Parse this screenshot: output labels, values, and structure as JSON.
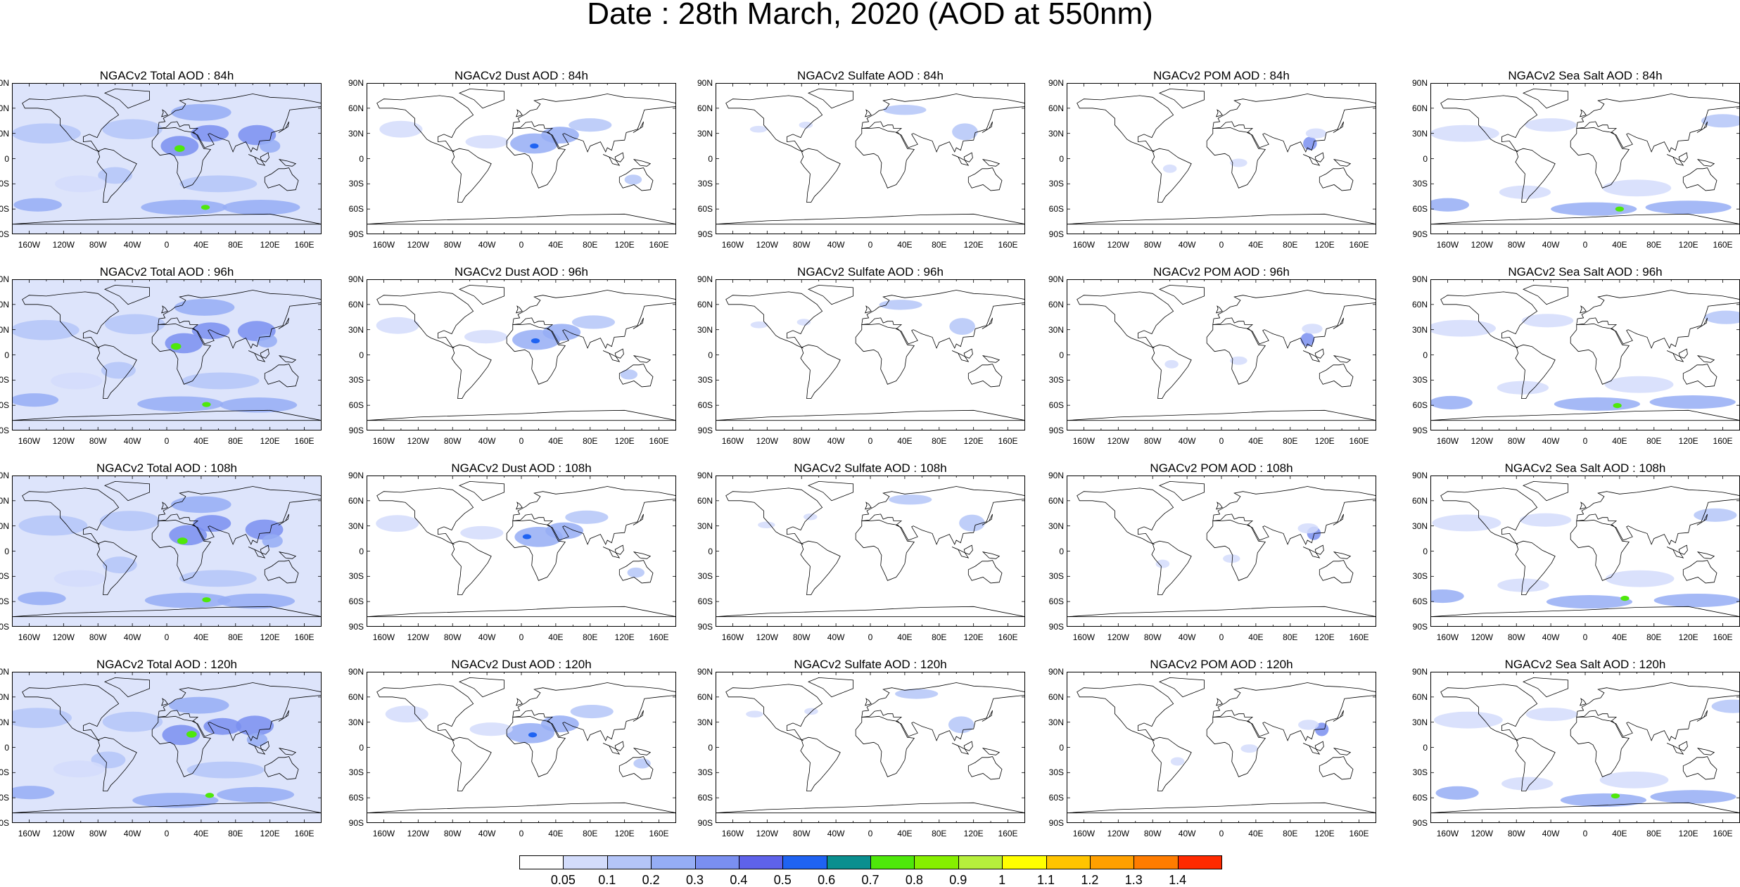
{
  "title": "Date : 28th March, 2020 (AOD at 550nm)",
  "panels": [
    [
      "NGACv2 Total AOD : 84h",
      "NGACv2 Dust AOD : 84h",
      "NGACv2 Sulfate AOD : 84h",
      "NGACv2 POM AOD : 84h",
      "NGACv2 Sea Salt AOD : 84h"
    ],
    [
      "NGACv2 Total AOD : 96h",
      "NGACv2 Dust AOD : 96h",
      "NGACv2 Sulfate AOD : 96h",
      "NGACv2 POM AOD : 96h",
      "NGACv2 Sea Salt AOD : 96h"
    ],
    [
      "NGACv2 Total AOD : 108h",
      "NGACv2 Dust AOD : 108h",
      "NGACv2 Sulfate AOD : 108h",
      "NGACv2 POM AOD : 108h",
      "NGACv2 Sea Salt AOD : 108h"
    ],
    [
      "NGACv2 Total AOD : 120h",
      "NGACv2 Dust AOD : 120h",
      "NGACv2 Sulfate AOD : 120h",
      "NGACv2 POM AOD : 120h",
      "NGACv2 Sea Salt  AOD : 120h"
    ]
  ],
  "lat_labels": [
    "90N",
    "60N",
    "30N",
    "0",
    "30S",
    "60S",
    "90S"
  ],
  "lon_labels": [
    "160W",
    "120W",
    "80W",
    "40W",
    "0",
    "40E",
    "80E",
    "120E",
    "160E"
  ],
  "colorbar": {
    "levels": [
      "0.05",
      "0.1",
      "0.2",
      "0.3",
      "0.4",
      "0.5",
      "0.6",
      "0.7",
      "0.8",
      "0.9",
      "1",
      "1.1",
      "1.2",
      "1.3",
      "1.4"
    ],
    "colors": [
      "#ffffff",
      "#d3dcfb",
      "#b4c5f8",
      "#95adf5",
      "#7a8ff0",
      "#5e62ea",
      "#1f63f2",
      "#0a8f8f",
      "#4ee80a",
      "#86ef00",
      "#b6ef3c",
      "#ffff00",
      "#ffc400",
      "#ffa000",
      "#ff7c00",
      "#ff2a00"
    ]
  }
}
